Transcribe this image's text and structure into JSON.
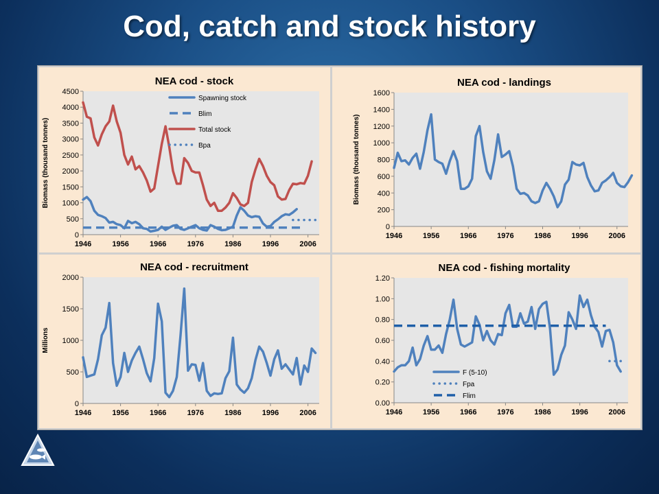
{
  "slide": {
    "title": "Cod, catch and stock history"
  },
  "colors": {
    "blue": "#4f81bd",
    "red": "#c0504d",
    "darkblue": "#1f5fa8",
    "plot_bg": "#e6e6e6",
    "panel_bg": "#fbe8d2"
  },
  "icons": {
    "logo": "ices-fish-triangle-logo"
  },
  "chart_data": [
    {
      "id": "stock",
      "type": "line",
      "title": "NEA cod - stock",
      "ylabel": "Biomass (thousand tonnes)",
      "xlabel": "",
      "xlim": [
        1946,
        2009
      ],
      "ylim": [
        0,
        4500
      ],
      "xticks": [
        1946,
        1956,
        1966,
        1976,
        1986,
        1996,
        2006
      ],
      "yticks": [
        0,
        500,
        1000,
        1500,
        2000,
        2500,
        3000,
        3500,
        4000,
        4500
      ],
      "grid": false,
      "legend": "top-right",
      "series": [
        {
          "name": "Spawning stock",
          "color": "#4f81bd",
          "style": "solid",
          "x0": 1946,
          "values": [
            1100,
            1180,
            1050,
            750,
            620,
            580,
            520,
            380,
            400,
            330,
            300,
            200,
            430,
            360,
            400,
            330,
            200,
            180,
            100,
            120,
            150,
            250,
            150,
            220,
            280,
            300,
            180,
            150,
            200,
            250,
            300,
            200,
            150,
            130,
            300,
            250,
            180,
            140,
            150,
            200,
            250,
            600,
            860,
            750,
            600,
            550,
            580,
            560,
            350,
            250,
            270,
            400,
            480,
            580,
            640,
            620,
            700,
            800
          ]
        },
        {
          "name": "Blim",
          "color": "#4f81bd",
          "style": "dash",
          "x0": 1946,
          "values": [
            220,
            220,
            220,
            220,
            220,
            220,
            220,
            220,
            220,
            220,
            220,
            220,
            220,
            220,
            220,
            220,
            220,
            220,
            220,
            220,
            220,
            220,
            220,
            220,
            220,
            220,
            220,
            220,
            220,
            220,
            220,
            220,
            220,
            220,
            220,
            220,
            220,
            220,
            220,
            220,
            220,
            220,
            220,
            220,
            220,
            220,
            220,
            220,
            220,
            220,
            220,
            220,
            220,
            220,
            220,
            220,
            220,
            220,
            220,
            220
          ]
        },
        {
          "name": "Total stock",
          "color": "#c0504d",
          "style": "solid",
          "x0": 1946,
          "values": [
            4150,
            3700,
            3650,
            3050,
            2800,
            3150,
            3400,
            3550,
            4050,
            3550,
            3200,
            2500,
            2200,
            2450,
            2050,
            2150,
            1950,
            1700,
            1350,
            1450,
            2150,
            2850,
            3400,
            2750,
            2000,
            1600,
            1600,
            2400,
            2250,
            2000,
            1950,
            1950,
            1550,
            1100,
            900,
            1000,
            750,
            750,
            850,
            1000,
            1300,
            1150,
            950,
            900,
            1000,
            1650,
            2050,
            2380,
            2150,
            1850,
            1650,
            1550,
            1200,
            1100,
            1120,
            1400,
            1600,
            1580,
            1620,
            1600,
            1850,
            2300
          ]
        },
        {
          "name": "Bpa",
          "color": "#4f81bd",
          "style": "dot",
          "x0": 2002,
          "values": [
            460,
            460,
            460,
            460,
            460,
            460,
            460
          ]
        }
      ]
    },
    {
      "id": "landings",
      "type": "line",
      "title": "NEA cod - landings",
      "ylabel": "Biomass (thousand tonnes)",
      "xlabel": "",
      "xlim": [
        1946,
        2009
      ],
      "ylim": [
        0,
        1600
      ],
      "xticks": [
        1946,
        1956,
        1966,
        1976,
        1986,
        1996,
        2006
      ],
      "yticks": [
        0,
        200,
        400,
        600,
        800,
        1000,
        1200,
        1400,
        1600
      ],
      "grid": false,
      "legend": "none",
      "series": [
        {
          "name": "",
          "color": "#4f81bd",
          "style": "solid",
          "x0": 1946,
          "values": [
            700,
            880,
            780,
            790,
            740,
            820,
            870,
            690,
            890,
            1150,
            1340,
            800,
            770,
            750,
            630,
            780,
            900,
            780,
            450,
            450,
            480,
            570,
            1080,
            1200,
            890,
            660,
            570,
            790,
            1100,
            830,
            860,
            900,
            720,
            450,
            390,
            400,
            370,
            300,
            280,
            300,
            430,
            520,
            450,
            360,
            230,
            300,
            500,
            560,
            770,
            740,
            730,
            760,
            590,
            490,
            420,
            430,
            520,
            550,
            590,
            640,
            520,
            480,
            470,
            530,
            610
          ]
        }
      ]
    },
    {
      "id": "recruitment",
      "type": "line",
      "title": "NEA cod - recruitment",
      "ylabel": "Millions",
      "xlabel": "",
      "xlim": [
        1946,
        2009
      ],
      "ylim": [
        0,
        2000
      ],
      "xticks": [
        1946,
        1956,
        1966,
        1976,
        1986,
        1996,
        2006
      ],
      "yticks": [
        0,
        500,
        1000,
        1500,
        2000
      ],
      "grid": false,
      "legend": "none",
      "series": [
        {
          "name": "",
          "color": "#4f81bd",
          "style": "solid",
          "x0": 1946,
          "values": [
            730,
            420,
            440,
            460,
            700,
            1080,
            1200,
            1590,
            640,
            280,
            420,
            800,
            500,
            680,
            800,
            900,
            700,
            480,
            350,
            720,
            1580,
            1300,
            170,
            100,
            200,
            420,
            1080,
            1820,
            520,
            620,
            610,
            360,
            640,
            200,
            120,
            160,
            150,
            160,
            400,
            510,
            1040,
            300,
            220,
            170,
            240,
            400,
            690,
            900,
            820,
            640,
            440,
            700,
            840,
            550,
            620,
            540,
            460,
            720,
            300,
            600,
            500,
            870,
            800
          ]
        }
      ]
    },
    {
      "id": "mortality",
      "type": "line",
      "title": "NEA cod - fishing mortality",
      "ylabel": "",
      "xlabel": "",
      "xlim": [
        1946,
        2009
      ],
      "ylim": [
        0,
        1.2
      ],
      "xticks": [
        1946,
        1956,
        1966,
        1976,
        1986,
        1996,
        2006
      ],
      "yticks": [
        0.0,
        0.2,
        0.4,
        0.6,
        0.8,
        1.0,
        1.2
      ],
      "grid": false,
      "legend": "bottom-left",
      "series": [
        {
          "name": "F (5-10)",
          "color": "#4f81bd",
          "style": "solid",
          "x0": 1946,
          "values": [
            0.3,
            0.34,
            0.36,
            0.36,
            0.4,
            0.53,
            0.36,
            0.42,
            0.55,
            0.64,
            0.51,
            0.51,
            0.55,
            0.48,
            0.66,
            0.8,
            0.99,
            0.71,
            0.56,
            0.54,
            0.56,
            0.58,
            0.83,
            0.75,
            0.6,
            0.69,
            0.6,
            0.56,
            0.66,
            0.65,
            0.86,
            0.94,
            0.73,
            0.73,
            0.86,
            0.76,
            0.78,
            0.92,
            0.71,
            0.9,
            0.95,
            0.97,
            0.71,
            0.27,
            0.32,
            0.46,
            0.55,
            0.87,
            0.8,
            0.71,
            1.03,
            0.92,
            0.99,
            0.84,
            0.73,
            0.68,
            0.54,
            0.69,
            0.7,
            0.58,
            0.36,
            0.3
          ]
        },
        {
          "name": "Fpa",
          "color": "#4f81bd",
          "style": "dot",
          "x0": 2004,
          "values": [
            0.4,
            0.4,
            0.4,
            0.4,
            0.4
          ]
        },
        {
          "name": "Flim",
          "color": "#1f5fa8",
          "style": "dash",
          "x0": 1946,
          "values": [
            0.74,
            0.74,
            0.74,
            0.74,
            0.74,
            0.74,
            0.74,
            0.74,
            0.74,
            0.74,
            0.74,
            0.74,
            0.74,
            0.74,
            0.74,
            0.74,
            0.74,
            0.74,
            0.74,
            0.74,
            0.74,
            0.74,
            0.74,
            0.74,
            0.74,
            0.74,
            0.74,
            0.74,
            0.74,
            0.74,
            0.74,
            0.74,
            0.74,
            0.74,
            0.74,
            0.74,
            0.74,
            0.74,
            0.74,
            0.74,
            0.74,
            0.74,
            0.74,
            0.74,
            0.74,
            0.74,
            0.74,
            0.74,
            0.74,
            0.74,
            0.74,
            0.74,
            0.74,
            0.74,
            0.74,
            0.74,
            0.74,
            0.74
          ]
        }
      ]
    }
  ]
}
